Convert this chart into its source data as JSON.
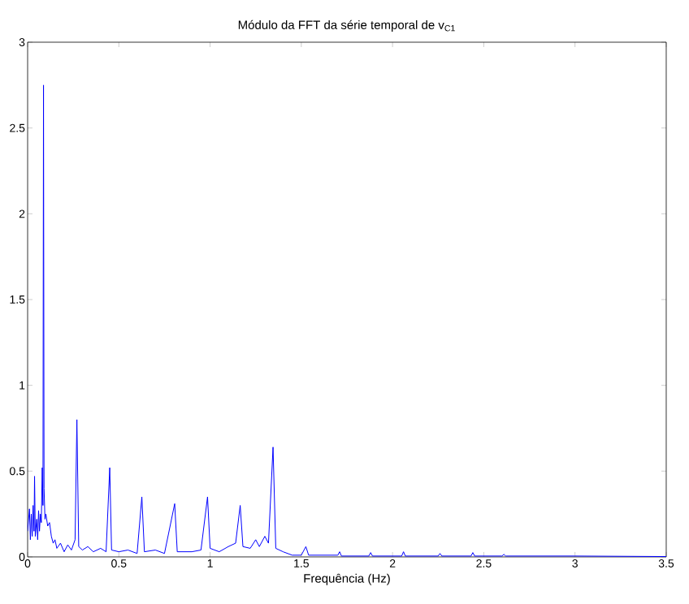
{
  "chart_data": {
    "type": "line",
    "title": "Módulo da FFT da série temporal de v$_{C1}$",
    "xlabel": "Frequência (Hz)",
    "color": "#0000ff",
    "marker": "none",
    "line_style": "solid",
    "xlim": [
      0,
      3.5
    ],
    "ylim": [
      0,
      3
    ],
    "xticks": [
      0,
      0.5,
      1,
      1.5,
      2,
      2.5,
      3,
      3.5
    ],
    "yticks": [
      0,
      0.5,
      1,
      1.5,
      2,
      2.5,
      3
    ],
    "x": [
      0,
      0.01,
      0.015,
      0.02,
      0.025,
      0.03,
      0.035,
      0.038,
      0.042,
      0.05,
      0.055,
      0.06,
      0.065,
      0.07,
      0.075,
      0.08,
      0.084,
      0.087,
      0.09,
      0.095,
      0.1,
      0.11,
      0.12,
      0.13,
      0.14,
      0.15,
      0.16,
      0.18,
      0.2,
      0.22,
      0.24,
      0.26,
      0.27,
      0.28,
      0.3,
      0.33,
      0.36,
      0.4,
      0.43,
      0.45,
      0.46,
      0.5,
      0.55,
      0.6,
      0.626,
      0.64,
      0.7,
      0.75,
      0.806,
      0.82,
      0.9,
      0.95,
      0.986,
      1.0,
      1.05,
      1.1,
      1.14,
      1.165,
      1.18,
      1.22,
      1.25,
      1.27,
      1.3,
      1.32,
      1.345,
      1.36,
      1.4,
      1.45,
      1.5,
      1.525,
      1.54,
      1.7,
      1.71,
      1.72,
      1.87,
      1.88,
      1.89,
      2.05,
      2.06,
      2.07,
      2.25,
      2.26,
      2.27,
      2.43,
      2.44,
      2.45,
      2.6,
      2.61,
      2.62,
      3.0,
      3.5
    ],
    "values": [
      0.15,
      0.28,
      0.1,
      0.25,
      0.12,
      0.3,
      0.15,
      0.47,
      0.12,
      0.22,
      0.1,
      0.27,
      0.15,
      0.25,
      0.2,
      0.52,
      0.3,
      2.75,
      0.4,
      0.22,
      0.25,
      0.18,
      0.2,
      0.12,
      0.08,
      0.1,
      0.05,
      0.08,
      0.03,
      0.07,
      0.04,
      0.1,
      0.8,
      0.06,
      0.04,
      0.06,
      0.03,
      0.05,
      0.03,
      0.52,
      0.04,
      0.03,
      0.04,
      0.02,
      0.35,
      0.03,
      0.04,
      0.02,
      0.31,
      0.03,
      0.03,
      0.04,
      0.35,
      0.05,
      0.03,
      0.06,
      0.08,
      0.3,
      0.06,
      0.05,
      0.1,
      0.06,
      0.12,
      0.08,
      0.64,
      0.05,
      0.03,
      0.01,
      0.01,
      0.06,
      0.01,
      0.01,
      0.03,
      0.005,
      0.005,
      0.025,
      0.005,
      0.005,
      0.03,
      0.005,
      0.005,
      0.02,
      0.005,
      0.005,
      0.025,
      0.005,
      0.005,
      0.015,
      0.005,
      0.005,
      0.002
    ]
  }
}
